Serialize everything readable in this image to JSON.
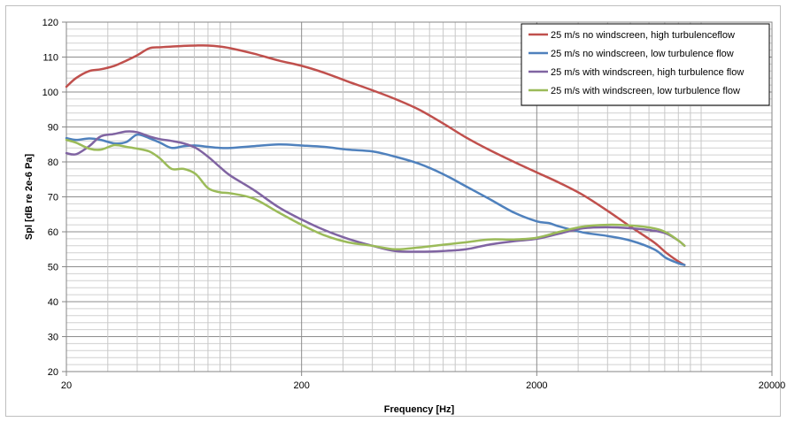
{
  "chart_data": {
    "type": "line",
    "xlabel": "Frequency [Hz]",
    "ylabel": "Spl [dB re 2e-6 Pa]",
    "xscale": "log",
    "xlim": [
      20,
      20000
    ],
    "ylim": [
      20,
      120
    ],
    "grid": true,
    "legend_position": "top-right",
    "x_ticks": [
      20,
      200,
      2000,
      20000
    ],
    "y_ticks": [
      20,
      30,
      40,
      50,
      60,
      70,
      80,
      90,
      100,
      110,
      120
    ],
    "x_tick_labels": [
      "20",
      "200",
      "2000",
      "20000"
    ],
    "y_tick_labels": [
      "20",
      "30",
      "40",
      "50",
      "60",
      "70",
      "80",
      "90",
      "100",
      "110",
      "120"
    ],
    "series": [
      {
        "name": "25 m/s no windscreen, high turbulenceflow",
        "color": "#c0504d",
        "points": [
          [
            20,
            101.5
          ],
          [
            22,
            104
          ],
          [
            25,
            106
          ],
          [
            28,
            106.5
          ],
          [
            32,
            107.5
          ],
          [
            36,
            109
          ],
          [
            40,
            110.5
          ],
          [
            45,
            112.5
          ],
          [
            50,
            112.8
          ],
          [
            56,
            113
          ],
          [
            63,
            113.2
          ],
          [
            71,
            113.3
          ],
          [
            80,
            113.3
          ],
          [
            90,
            113
          ],
          [
            100,
            112.5
          ],
          [
            125,
            111
          ],
          [
            160,
            109
          ],
          [
            200,
            107.5
          ],
          [
            250,
            105.5
          ],
          [
            315,
            103
          ],
          [
            400,
            100.5
          ],
          [
            500,
            98
          ],
          [
            630,
            95
          ],
          [
            800,
            91
          ],
          [
            1000,
            87
          ],
          [
            1250,
            83.5
          ],
          [
            1600,
            80
          ],
          [
            2000,
            77
          ],
          [
            2500,
            74
          ],
          [
            3150,
            70.5
          ],
          [
            4000,
            66
          ],
          [
            5000,
            61.5
          ],
          [
            6300,
            57
          ],
          [
            7100,
            54
          ],
          [
            8000,
            51.5
          ],
          [
            8500,
            50.5
          ]
        ]
      },
      {
        "name": "25 m/s no windscreen, low turbulence flow",
        "color": "#4f81bd",
        "points": [
          [
            20,
            86.8
          ],
          [
            22,
            86.3
          ],
          [
            25,
            86.7
          ],
          [
            28,
            86.3
          ],
          [
            32,
            85.3
          ],
          [
            36,
            85.7
          ],
          [
            40,
            87.8
          ],
          [
            45,
            86.8
          ],
          [
            50,
            85.5
          ],
          [
            56,
            84
          ],
          [
            63,
            84.5
          ],
          [
            71,
            84.7
          ],
          [
            80,
            84.3
          ],
          [
            90,
            84
          ],
          [
            100,
            84
          ],
          [
            125,
            84.5
          ],
          [
            160,
            85
          ],
          [
            200,
            84.7
          ],
          [
            250,
            84.3
          ],
          [
            315,
            83.5
          ],
          [
            400,
            83
          ],
          [
            500,
            81.5
          ],
          [
            630,
            79.5
          ],
          [
            800,
            76.5
          ],
          [
            1000,
            73
          ],
          [
            1250,
            69.5
          ],
          [
            1600,
            65.5
          ],
          [
            2000,
            63
          ],
          [
            2250,
            62.5
          ],
          [
            2500,
            61.5
          ],
          [
            3150,
            59.8
          ],
          [
            4000,
            58.8
          ],
          [
            5000,
            57.5
          ],
          [
            6300,
            55
          ],
          [
            7100,
            52.5
          ],
          [
            8000,
            51
          ],
          [
            8500,
            50.5
          ]
        ]
      },
      {
        "name": "25 m/s with windscreen, high turbulence flow",
        "color": "#8064a2",
        "points": [
          [
            20,
            82.5
          ],
          [
            22,
            82.2
          ],
          [
            25,
            84.5
          ],
          [
            28,
            87.3
          ],
          [
            32,
            88
          ],
          [
            36,
            88.7
          ],
          [
            40,
            88.5
          ],
          [
            45,
            87.3
          ],
          [
            50,
            86.5
          ],
          [
            56,
            86
          ],
          [
            63,
            85.3
          ],
          [
            71,
            84
          ],
          [
            80,
            81.5
          ],
          [
            90,
            78.5
          ],
          [
            100,
            76
          ],
          [
            125,
            72
          ],
          [
            160,
            67
          ],
          [
            200,
            63.5
          ],
          [
            250,
            60.5
          ],
          [
            315,
            58
          ],
          [
            400,
            56
          ],
          [
            500,
            54.5
          ],
          [
            630,
            54.3
          ],
          [
            800,
            54.5
          ],
          [
            1000,
            55
          ],
          [
            1250,
            56.3
          ],
          [
            1600,
            57.3
          ],
          [
            2000,
            58
          ],
          [
            2500,
            59.5
          ],
          [
            3150,
            61
          ],
          [
            4000,
            61.3
          ],
          [
            5000,
            61
          ],
          [
            6300,
            60.3
          ],
          [
            7100,
            59.5
          ],
          [
            8000,
            57.5
          ],
          [
            8500,
            56
          ]
        ]
      },
      {
        "name": "25 m/s with windscreen, low turbulence flow",
        "color": "#9bbb59",
        "points": [
          [
            20,
            86.3
          ],
          [
            22,
            85.5
          ],
          [
            25,
            83.8
          ],
          [
            28,
            83.5
          ],
          [
            32,
            84.8
          ],
          [
            36,
            84.3
          ],
          [
            40,
            83.8
          ],
          [
            45,
            83
          ],
          [
            50,
            81
          ],
          [
            56,
            78
          ],
          [
            63,
            78
          ],
          [
            71,
            76.5
          ],
          [
            80,
            72.5
          ],
          [
            90,
            71.3
          ],
          [
            100,
            71
          ],
          [
            125,
            69.5
          ],
          [
            160,
            65.5
          ],
          [
            200,
            62
          ],
          [
            250,
            59
          ],
          [
            315,
            57
          ],
          [
            400,
            56
          ],
          [
            500,
            55
          ],
          [
            630,
            55.5
          ],
          [
            800,
            56.3
          ],
          [
            1000,
            57
          ],
          [
            1250,
            57.8
          ],
          [
            1600,
            57.8
          ],
          [
            2000,
            58.3
          ],
          [
            2500,
            60
          ],
          [
            3150,
            61.5
          ],
          [
            4000,
            62
          ],
          [
            5000,
            61.8
          ],
          [
            6300,
            61
          ],
          [
            7100,
            59.8
          ],
          [
            8000,
            57.5
          ],
          [
            8500,
            56
          ]
        ]
      }
    ]
  }
}
